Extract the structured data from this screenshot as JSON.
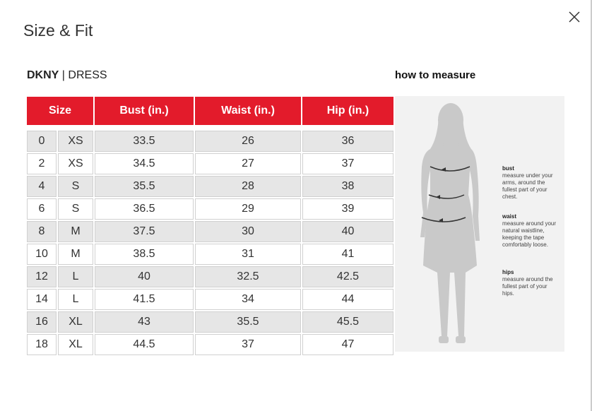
{
  "header": {
    "title": "Size & Fit"
  },
  "product": {
    "brand": "DKNY",
    "separator": "|",
    "name": "DRESS"
  },
  "how_to_measure": {
    "title": "how to measure",
    "items": [
      {
        "label": "bust",
        "text": "measure under your arms, around the fullest part of your chest."
      },
      {
        "label": "waist",
        "text": "measure around your natural waistline, keeping the tape comfortably loose."
      },
      {
        "label": "hips",
        "text": "measure around the fullest part of your hips."
      }
    ]
  },
  "table": {
    "headers": [
      "Size",
      "Bust (in.)",
      "Waist (in.)",
      "Hip (in.)"
    ],
    "rows": [
      [
        "0",
        "XS",
        "33.5",
        "26",
        "36"
      ],
      [
        "2",
        "XS",
        "34.5",
        "27",
        "37"
      ],
      [
        "4",
        "S",
        "35.5",
        "28",
        "38"
      ],
      [
        "6",
        "S",
        "36.5",
        "29",
        "39"
      ],
      [
        "8",
        "M",
        "37.5",
        "30",
        "40"
      ],
      [
        "10",
        "M",
        "38.5",
        "31",
        "41"
      ],
      [
        "12",
        "L",
        "40",
        "32.5",
        "42.5"
      ],
      [
        "14",
        "L",
        "41.5",
        "34",
        "44"
      ],
      [
        "16",
        "XL",
        "43",
        "35.5",
        "45.5"
      ],
      [
        "18",
        "XL",
        "44.5",
        "37",
        "47"
      ]
    ]
  }
}
